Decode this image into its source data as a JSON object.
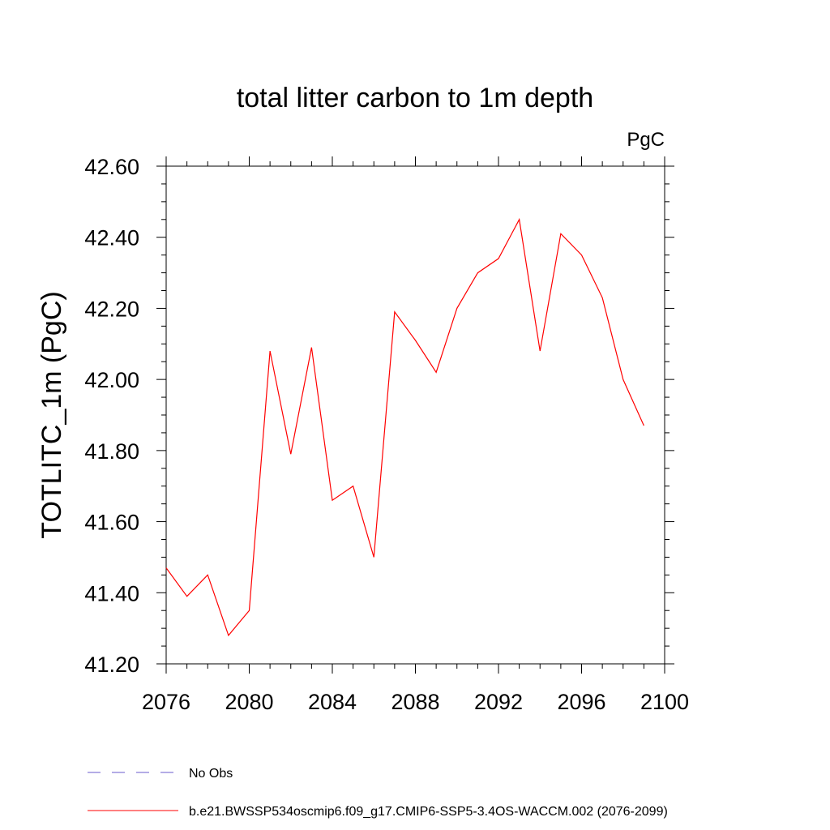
{
  "chart_data": {
    "type": "line",
    "title": "total litter carbon to 1m depth",
    "units_label": "PgC",
    "xlabel": "",
    "ylabel": "TOTLITC_1m  (PgC)",
    "xlim": [
      2076,
      2100
    ],
    "ylim": [
      41.2,
      42.6
    ],
    "x_ticks": [
      2076,
      2080,
      2084,
      2088,
      2092,
      2096,
      2100
    ],
    "x_tick_labels": [
      "2076",
      "2080",
      "2084",
      "2088",
      "2092",
      "2096",
      "2100"
    ],
    "y_ticks": [
      41.2,
      41.4,
      41.6,
      41.8,
      42.0,
      42.2,
      42.4,
      42.6
    ],
    "y_tick_labels": [
      "41.20",
      "41.40",
      "41.60",
      "41.80",
      "42.00",
      "42.20",
      "42.40",
      "42.60"
    ],
    "x_minor_step": 1,
    "y_minor_step": 0.05,
    "grid": false,
    "series": [
      {
        "name": "b.e21.BWSSP534oscmip6.f09_g17.CMIP6-SSP5-3.4OS-WACCM.002 (2076-2099)",
        "color": "#ff0000",
        "style": "solid",
        "x": [
          2076,
          2077,
          2078,
          2079,
          2080,
          2081,
          2082,
          2083,
          2084,
          2085,
          2086,
          2087,
          2088,
          2089,
          2090,
          2091,
          2092,
          2093,
          2094,
          2095,
          2096,
          2097,
          2098,
          2099
        ],
        "values": [
          41.47,
          41.39,
          41.45,
          41.28,
          41.35,
          42.08,
          41.79,
          42.09,
          41.66,
          41.7,
          41.5,
          42.19,
          42.11,
          42.02,
          42.2,
          42.3,
          42.34,
          42.45,
          42.08,
          42.41,
          42.35,
          42.23,
          42.0,
          41.87
        ]
      }
    ],
    "legend": {
      "position": "bottom-left",
      "entries": [
        {
          "label": "No Obs",
          "color": "#6a5acd",
          "style": "dashed"
        },
        {
          "label": "b.e21.BWSSP534oscmip6.f09_g17.CMIP6-SSP5-3.4OS-WACCM.002 (2076-2099)",
          "color": "#ff0000",
          "style": "solid"
        }
      ]
    }
  }
}
